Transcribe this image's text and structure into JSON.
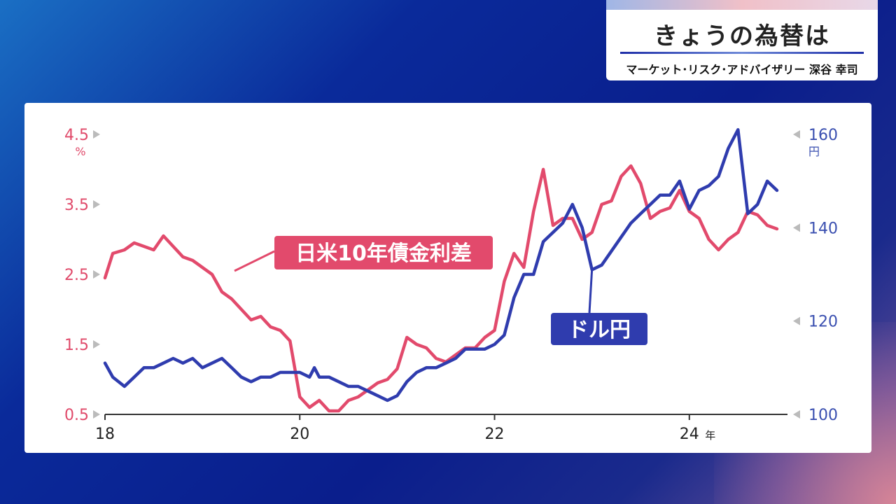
{
  "header": {
    "title": "きょうの為替は",
    "subtitle": "マーケット･リスク･アドバイザリー 深谷 幸司"
  },
  "colors": {
    "spread": "#e24a6c",
    "usdjpy": "#2f3cae",
    "accent": "#1f2fa8"
  },
  "chart_data": {
    "type": "line",
    "x_ticks": [
      "18",
      "20",
      "22",
      "24"
    ],
    "x_unit": "年",
    "y_left": {
      "ticks": [
        "0.5",
        "1.5",
        "2.5",
        "3.5",
        "4.5"
      ],
      "unit": "%",
      "range": [
        0.5,
        4.5
      ]
    },
    "y_right": {
      "ticks": [
        "100",
        "120",
        "140",
        "160"
      ],
      "unit": "円",
      "range": [
        100,
        160
      ]
    },
    "x_range": [
      2018,
      2024.9
    ],
    "series": [
      {
        "name": "日米10年債金利差",
        "axis": "left",
        "color": "#e24a6c",
        "x": [
          2018.0,
          2018.08,
          2018.2,
          2018.3,
          2018.4,
          2018.5,
          2018.6,
          2018.7,
          2018.8,
          2018.9,
          2019.0,
          2019.1,
          2019.2,
          2019.3,
          2019.4,
          2019.5,
          2019.6,
          2019.7,
          2019.8,
          2019.9,
          2020.0,
          2020.1,
          2020.15,
          2020.2,
          2020.3,
          2020.4,
          2020.5,
          2020.6,
          2020.7,
          2020.8,
          2020.9,
          2021.0,
          2021.1,
          2021.2,
          2021.3,
          2021.4,
          2021.5,
          2021.6,
          2021.7,
          2021.8,
          2021.9,
          2022.0,
          2022.1,
          2022.2,
          2022.3,
          2022.4,
          2022.5,
          2022.6,
          2022.7,
          2022.8,
          2022.9,
          2023.0,
          2023.1,
          2023.2,
          2023.3,
          2023.4,
          2023.5,
          2023.6,
          2023.7,
          2023.8,
          2023.9,
          2024.0,
          2024.1,
          2024.2,
          2024.3,
          2024.4,
          2024.5,
          2024.6,
          2024.7,
          2024.8,
          2024.9
        ],
        "y": [
          2.45,
          2.8,
          2.85,
          2.95,
          2.9,
          2.85,
          3.05,
          2.9,
          2.75,
          2.7,
          2.6,
          2.5,
          2.25,
          2.15,
          2.0,
          1.85,
          1.9,
          1.75,
          1.7,
          1.55,
          0.75,
          0.6,
          0.65,
          0.7,
          0.55,
          0.55,
          0.7,
          0.75,
          0.85,
          0.95,
          1.0,
          1.15,
          1.6,
          1.5,
          1.45,
          1.3,
          1.25,
          1.35,
          1.45,
          1.45,
          1.6,
          1.7,
          2.4,
          2.8,
          2.6,
          3.4,
          4.0,
          3.2,
          3.3,
          3.3,
          3.0,
          3.1,
          3.5,
          3.55,
          3.9,
          4.05,
          3.8,
          3.3,
          3.4,
          3.45,
          3.7,
          3.4,
          3.3,
          3.0,
          2.85,
          3.0,
          3.1,
          3.4,
          3.35,
          3.2,
          3.15
        ]
      },
      {
        "name": "ドル円",
        "axis": "right",
        "color": "#2f3cae",
        "x": [
          2018.0,
          2018.08,
          2018.2,
          2018.3,
          2018.4,
          2018.5,
          2018.6,
          2018.7,
          2018.8,
          2018.9,
          2019.0,
          2019.1,
          2019.2,
          2019.3,
          2019.4,
          2019.5,
          2019.6,
          2019.7,
          2019.8,
          2019.9,
          2020.0,
          2020.1,
          2020.15,
          2020.2,
          2020.3,
          2020.4,
          2020.5,
          2020.6,
          2020.7,
          2020.8,
          2020.9,
          2021.0,
          2021.1,
          2021.2,
          2021.3,
          2021.4,
          2021.5,
          2021.6,
          2021.7,
          2021.8,
          2021.9,
          2022.0,
          2022.1,
          2022.2,
          2022.3,
          2022.4,
          2022.5,
          2022.6,
          2022.7,
          2022.8,
          2022.9,
          2023.0,
          2023.1,
          2023.2,
          2023.3,
          2023.4,
          2023.5,
          2023.6,
          2023.7,
          2023.8,
          2023.9,
          2024.0,
          2024.1,
          2024.2,
          2024.3,
          2024.4,
          2024.5,
          2024.6,
          2024.7,
          2024.8,
          2024.9
        ],
        "y": [
          111,
          108,
          106,
          108,
          110,
          110,
          111,
          112,
          111,
          112,
          110,
          111,
          112,
          110,
          108,
          107,
          108,
          108,
          109,
          109,
          109,
          108,
          110,
          108,
          108,
          107,
          106,
          106,
          105,
          104,
          103,
          104,
          107,
          109,
          110,
          110,
          111,
          112,
          114,
          114,
          114,
          115,
          117,
          125,
          130,
          130,
          137,
          139,
          141,
          145,
          140,
          131,
          132,
          135,
          138,
          141,
          143,
          145,
          147,
          147,
          150,
          144,
          148,
          149,
          151,
          157,
          161,
          143,
          145,
          150,
          148
        ]
      }
    ],
    "annotations": [
      "日米10年債金利差",
      "ドル円"
    ]
  }
}
